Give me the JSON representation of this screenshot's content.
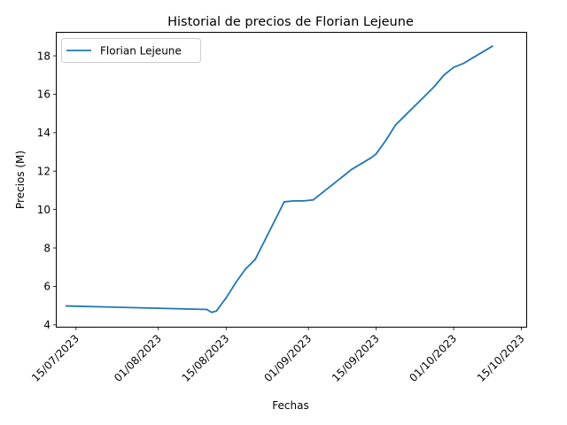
{
  "chart_data": {
    "type": "line",
    "title": "Historial de precios de Florian Lejeune",
    "xlabel": "Fechas",
    "ylabel": "Precios (M)",
    "xlim": [
      "2023-07-11",
      "2023-10-16"
    ],
    "ylim": [
      3.9,
      19.2
    ],
    "xticks": [
      {
        "date": "2023-07-15",
        "label": "15/07/2023"
      },
      {
        "date": "2023-08-01",
        "label": "01/08/2023"
      },
      {
        "date": "2023-08-15",
        "label": "15/08/2023"
      },
      {
        "date": "2023-09-01",
        "label": "01/09/2023"
      },
      {
        "date": "2023-09-15",
        "label": "15/09/2023"
      },
      {
        "date": "2023-10-01",
        "label": "01/10/2023"
      },
      {
        "date": "2023-10-15",
        "label": "15/10/2023"
      }
    ],
    "yticks": [
      {
        "value": 4,
        "label": "4"
      },
      {
        "value": 6,
        "label": "6"
      },
      {
        "value": 8,
        "label": "8"
      },
      {
        "value": 10,
        "label": "10"
      },
      {
        "value": 12,
        "label": "12"
      },
      {
        "value": 14,
        "label": "14"
      },
      {
        "value": 16,
        "label": "16"
      },
      {
        "value": 18,
        "label": "18"
      }
    ],
    "grid": false,
    "legend": "top-left",
    "series": [
      {
        "name": "Florian Lejeune",
        "color": "#1f77b4",
        "x": [
          "2023-07-13",
          "2023-08-11",
          "2023-08-12",
          "2023-08-13",
          "2023-08-15",
          "2023-08-17",
          "2023-08-19",
          "2023-08-21",
          "2023-08-23",
          "2023-08-25",
          "2023-08-27",
          "2023-08-29",
          "2023-08-30",
          "2023-08-31",
          "2023-09-02",
          "2023-09-03",
          "2023-09-04",
          "2023-09-06",
          "2023-09-08",
          "2023-09-10",
          "2023-09-12",
          "2023-09-14",
          "2023-09-15",
          "2023-09-17",
          "2023-09-19",
          "2023-09-21",
          "2023-09-23",
          "2023-09-25",
          "2023-09-27",
          "2023-09-29",
          "2023-10-01",
          "2023-10-03",
          "2023-10-05",
          "2023-10-07",
          "2023-10-09"
        ],
        "values": [
          4.98,
          4.8,
          4.65,
          4.72,
          5.4,
          6.2,
          6.9,
          7.4,
          8.4,
          9.4,
          10.4,
          10.45,
          10.45,
          10.45,
          10.5,
          10.7,
          10.9,
          11.3,
          11.7,
          12.1,
          12.4,
          12.7,
          12.9,
          13.6,
          14.4,
          14.9,
          15.4,
          15.9,
          16.4,
          17.0,
          17.4,
          17.6,
          17.9,
          18.2,
          18.5
        ]
      }
    ]
  }
}
